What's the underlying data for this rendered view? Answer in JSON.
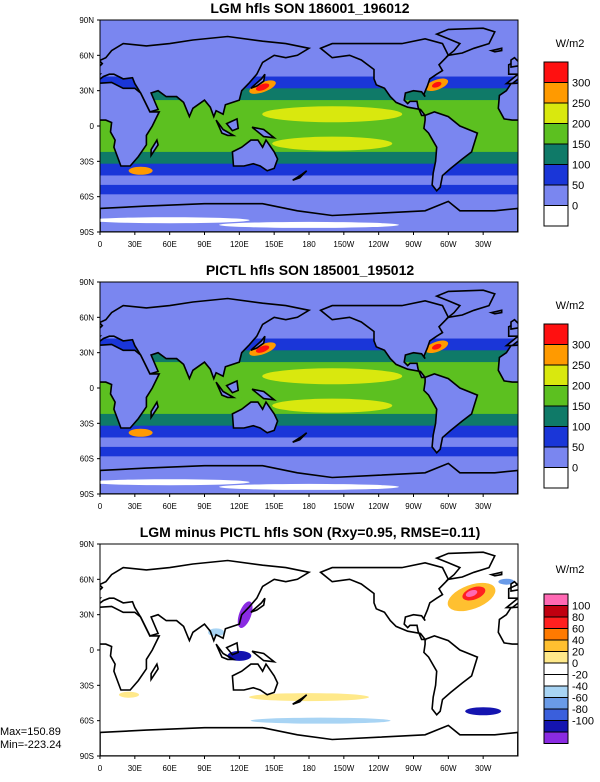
{
  "panels": [
    {
      "title": "LGM hfls SON 186001_196012",
      "units": "W/m2",
      "colorbar": {
        "colors": [
          "#ffffff",
          "#7a86f0",
          "#1a36d8",
          "#0f7a68",
          "#5cc020",
          "#d9e80e",
          "#ff9a00",
          "#ff1010"
        ],
        "labels": [
          "0",
          "50",
          "100",
          "150",
          "200",
          "250",
          "300"
        ]
      }
    },
    {
      "title": "PICTL hfls SON 185001_195012",
      "units": "W/m2",
      "colorbar": {
        "colors": [
          "#ffffff",
          "#7a86f0",
          "#1a36d8",
          "#0f7a68",
          "#5cc020",
          "#d9e80e",
          "#ff9a00",
          "#ff1010"
        ],
        "labels": [
          "0",
          "50",
          "100",
          "150",
          "200",
          "250",
          "300"
        ]
      }
    },
    {
      "title": "LGM minus PICTL hfls SON (Rxy=0.95, RMSE=0.11)",
      "units": "W/m2",
      "colorbar": {
        "colors": [
          "#8a2be2",
          "#1414b0",
          "#3a5fdc",
          "#6a9be8",
          "#a8d4f4",
          "#ffffff",
          "#ffffff",
          "#ffe98a",
          "#ffc030",
          "#ff7a00",
          "#ff2020",
          "#c00010",
          "#ff69b4"
        ],
        "labels": [
          "-100",
          "-80",
          "-60",
          "-40",
          "-20",
          "0",
          "20",
          "40",
          "60",
          "80",
          "100"
        ]
      },
      "stats": {
        "max": "Max=150.89",
        "min": "Min=-223.24"
      }
    }
  ],
  "lat_labels": [
    "90N",
    "60N",
    "30N",
    "0",
    "30S",
    "60S",
    "90S"
  ],
  "lon_labels": [
    "0",
    "30E",
    "60E",
    "90E",
    "120E",
    "150E",
    "180",
    "150W",
    "120W",
    "90W",
    "60W",
    "30W"
  ]
}
